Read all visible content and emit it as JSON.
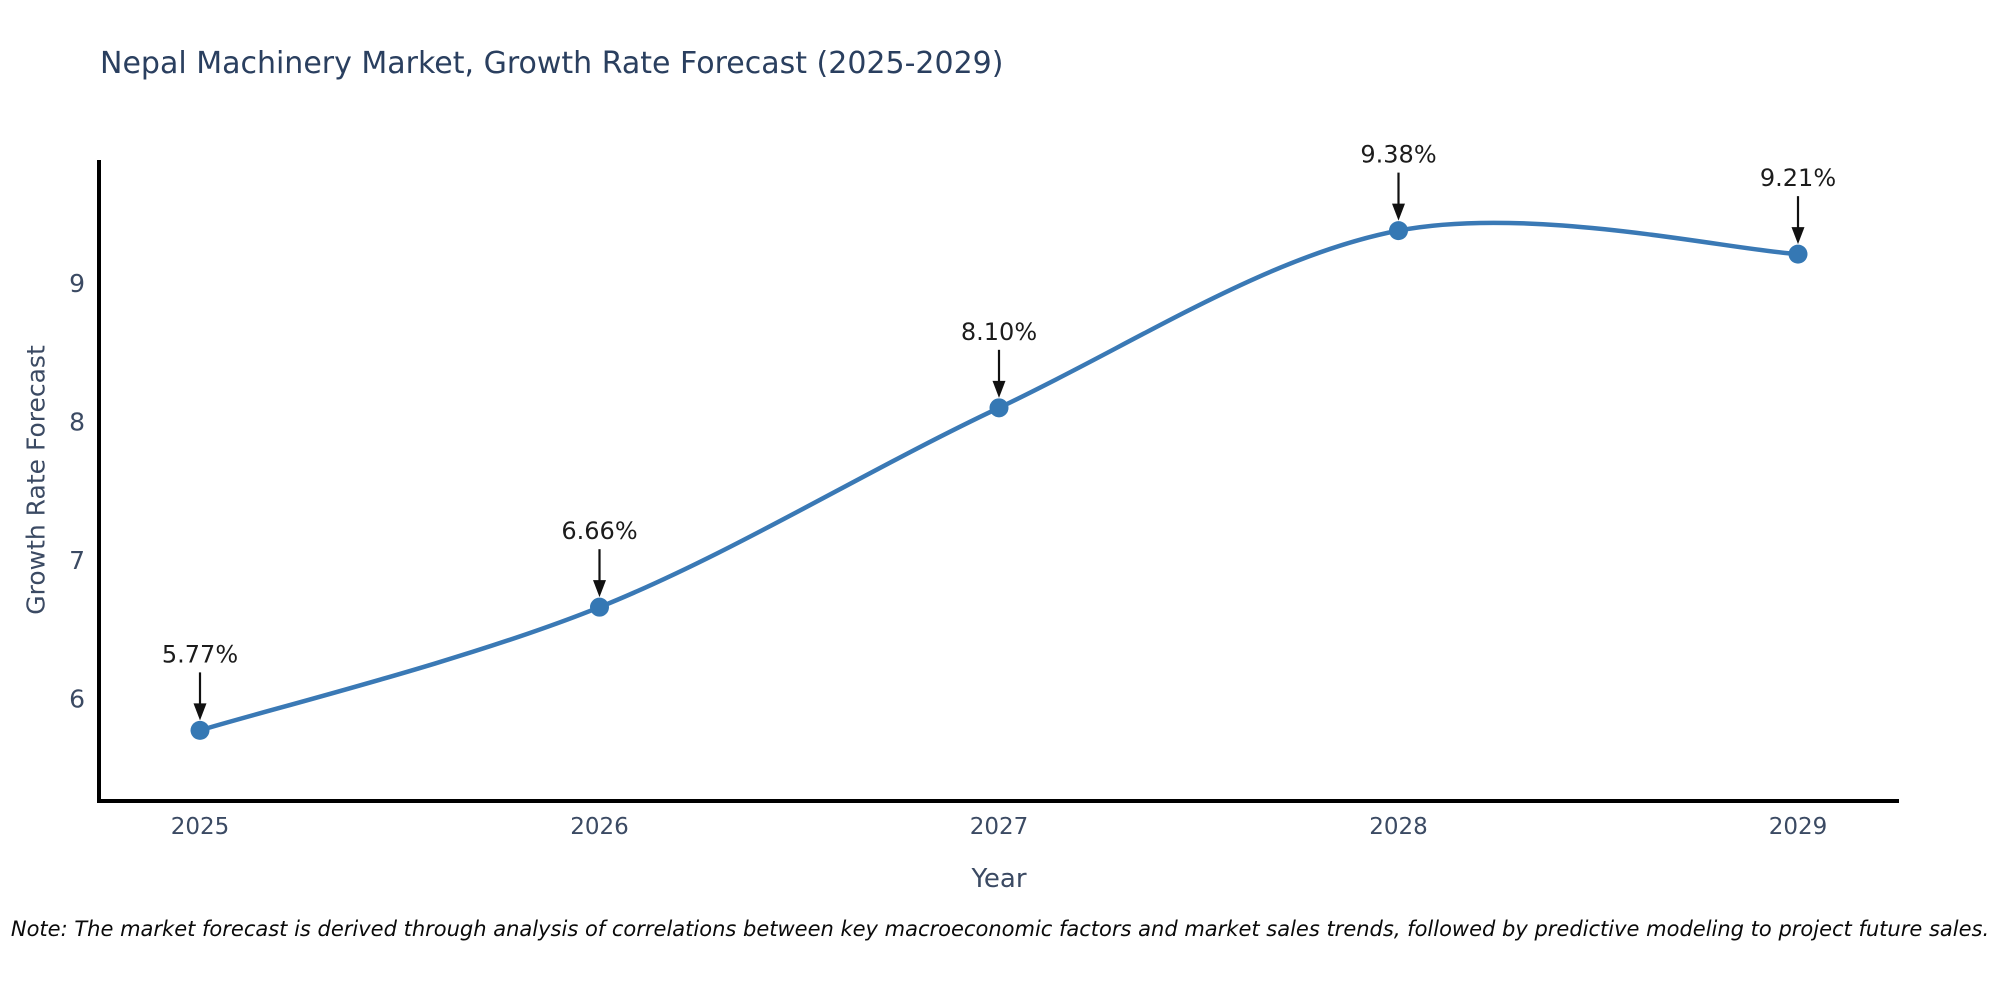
{
  "title": "Nepal Machinery Market, Growth Rate Forecast (2025-2029)",
  "note": "Note: The market forecast is derived through analysis of correlations between key macroeconomic factors and market sales trends, followed by predictive modeling to project future sales.",
  "chart_data": {
    "type": "line",
    "title": "Nepal Machinery Market, Growth Rate Forecast (2025-2029)",
    "xlabel": "Year",
    "ylabel": "Growth Rate Forecast",
    "categories": [
      "2025",
      "2026",
      "2027",
      "2028",
      "2029"
    ],
    "values": [
      5.77,
      6.66,
      8.1,
      9.38,
      9.21
    ],
    "point_labels": [
      "5.77%",
      "6.66%",
      "8.10%",
      "9.38%",
      "9.21%"
    ],
    "yticks": [
      6,
      7,
      8,
      9
    ],
    "ylim": [
      5.26,
      9.89
    ],
    "grid": "off",
    "legend": "none",
    "smoothing": true,
    "line_color": "#3a79b5",
    "marker_color": "#3578b4",
    "axis_color": "#000000",
    "tick_label_color": "#3b4a63",
    "annotation_color": "#1c1c1c",
    "title_color": "#2a3f5f"
  }
}
